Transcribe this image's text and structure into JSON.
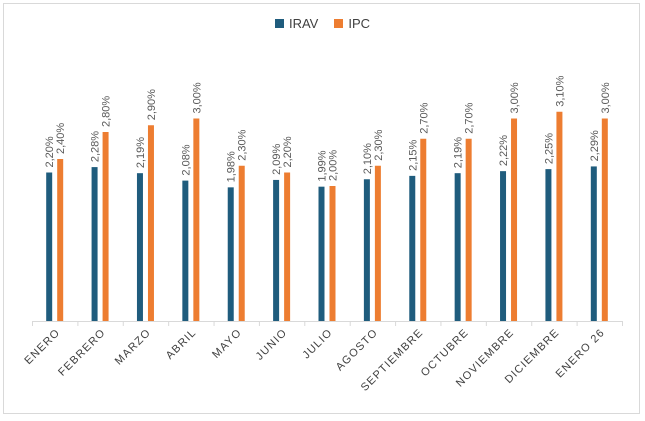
{
  "chart_data": {
    "type": "bar",
    "title": "",
    "xlabel": "",
    "ylabel": "",
    "ylim": [
      0,
      3.5
    ],
    "grid": false,
    "legend_position": "top-center",
    "categories": [
      "ENERO",
      "FEBRERO",
      "MARZO",
      "ABRIL",
      "MAYO",
      "JUNIO",
      "JULIO",
      "AGOSTO",
      "SEPTIEMBRE",
      "OCTUBRE",
      "NOVIEMBRE",
      "DICIEMBRE",
      "ENERO 26"
    ],
    "series": [
      {
        "name": "IRAV",
        "color": "#1f5c7d",
        "values": [
          2.2,
          2.28,
          2.19,
          2.08,
          1.98,
          2.09,
          1.99,
          2.1,
          2.15,
          2.19,
          2.22,
          2.25,
          2.29
        ],
        "labels": [
          "2,20%",
          "2,28%",
          "2,19%",
          "2,08%",
          "1,98%",
          "2,09%",
          "1,99%",
          "2,10%",
          "2,15%",
          "2,19%",
          "2,22%",
          "2,25%",
          "2,29%"
        ]
      },
      {
        "name": "IPC",
        "color": "#ed7d31",
        "values": [
          2.4,
          2.8,
          2.9,
          3.0,
          2.3,
          2.2,
          2.0,
          2.3,
          2.7,
          2.7,
          3.0,
          3.1,
          3.0
        ],
        "labels": [
          "2,40%",
          "2,80%",
          "2,90%",
          "3,00%",
          "2,30%",
          "2,20%",
          "2,00%",
          "2,30%",
          "2,70%",
          "2,70%",
          "3,00%",
          "3,10%",
          "3,00%"
        ]
      }
    ]
  }
}
